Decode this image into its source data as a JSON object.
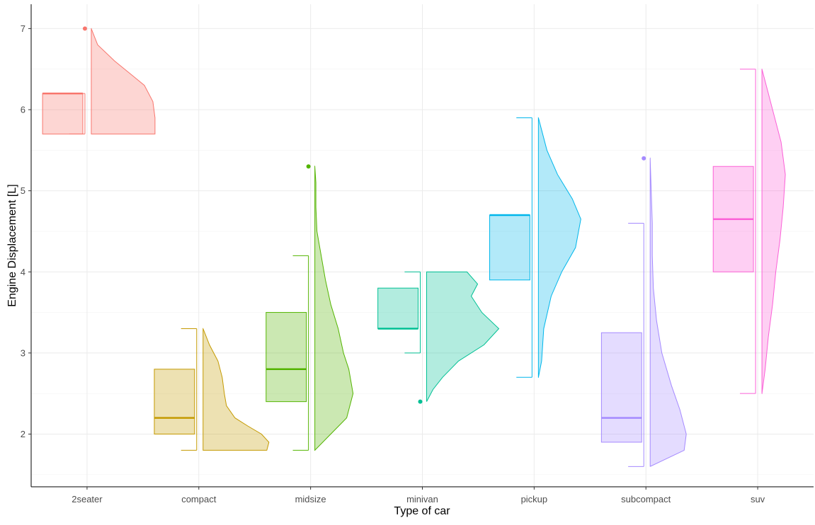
{
  "chart_data": {
    "type": "raincloud",
    "title": "",
    "xlabel": "Type of car",
    "ylabel": "Engine Displacement [L]",
    "ylim": [
      1.35,
      7.3
    ],
    "yticks": [
      2,
      3,
      4,
      5,
      6,
      7
    ],
    "grid": true,
    "legend": "none",
    "categories": [
      "2seater",
      "compact",
      "midsize",
      "minivan",
      "pickup",
      "subcompact",
      "suv"
    ],
    "colors": [
      "#F8766D",
      "#C49A00",
      "#53B400",
      "#00C094",
      "#00B6EB",
      "#A58AFF",
      "#FB61D7"
    ],
    "boxplots": [
      {
        "category": "2seater",
        "whisker_low": 5.7,
        "q1": 5.7,
        "median": 6.2,
        "q3": 6.2,
        "whisker_high": 6.2,
        "outliers": [
          7.0
        ]
      },
      {
        "category": "compact",
        "whisker_low": 1.8,
        "q1": 2.0,
        "median": 2.2,
        "q3": 2.8,
        "whisker_high": 3.3,
        "outliers": []
      },
      {
        "category": "midsize",
        "whisker_low": 1.8,
        "q1": 2.4,
        "median": 2.8,
        "q3": 3.5,
        "whisker_high": 4.2,
        "outliers": [
          5.3
        ]
      },
      {
        "category": "minivan",
        "whisker_low": 3.0,
        "q1": 3.3,
        "median": 3.3,
        "q3": 3.8,
        "whisker_high": 4.0,
        "outliers": [
          2.4
        ]
      },
      {
        "category": "pickup",
        "whisker_low": 2.7,
        "q1": 3.9,
        "median": 4.7,
        "q3": 4.7,
        "whisker_high": 5.9,
        "outliers": []
      },
      {
        "category": "subcompact",
        "whisker_low": 1.6,
        "q1": 1.9,
        "median": 2.2,
        "q3": 3.25,
        "whisker_high": 4.6,
        "outliers": [
          5.4
        ]
      },
      {
        "category": "suv",
        "whisker_low": 2.5,
        "q1": 4.0,
        "median": 4.65,
        "q3": 5.3,
        "whisker_high": 6.5,
        "outliers": []
      }
    ],
    "densities": [
      {
        "category": "2seater",
        "y": [
          5.7,
          5.9,
          6.1,
          6.3,
          6.45,
          6.6,
          6.8,
          7.0
        ],
        "width": [
          0.6,
          0.6,
          0.58,
          0.5,
          0.36,
          0.22,
          0.06,
          0.0
        ]
      },
      {
        "category": "compact",
        "y": [
          1.8,
          1.9,
          2.0,
          2.1,
          2.2,
          2.35,
          2.5,
          2.7,
          2.9,
          3.1,
          3.3
        ],
        "width": [
          0.6,
          0.62,
          0.55,
          0.42,
          0.3,
          0.22,
          0.2,
          0.18,
          0.14,
          0.06,
          0.0
        ]
      },
      {
        "category": "midsize",
        "y": [
          1.8,
          2.0,
          2.2,
          2.5,
          2.8,
          3.0,
          3.3,
          3.6,
          3.9,
          4.2,
          4.5,
          4.8,
          5.1,
          5.3
        ],
        "width": [
          0.0,
          0.15,
          0.3,
          0.36,
          0.32,
          0.27,
          0.22,
          0.15,
          0.1,
          0.06,
          0.02,
          0.01,
          0.01,
          0.0
        ]
      },
      {
        "category": "minivan",
        "y": [
          2.4,
          2.55,
          2.7,
          2.9,
          3.1,
          3.3,
          3.5,
          3.7,
          3.85,
          4.0
        ],
        "width": [
          0.0,
          0.06,
          0.15,
          0.3,
          0.54,
          0.68,
          0.52,
          0.42,
          0.48,
          0.38
        ]
      },
      {
        "category": "pickup",
        "y": [
          2.7,
          2.9,
          3.3,
          3.7,
          4.0,
          4.3,
          4.65,
          4.9,
          5.2,
          5.5,
          5.9
        ],
        "width": [
          0.0,
          0.03,
          0.05,
          0.12,
          0.22,
          0.35,
          0.4,
          0.32,
          0.18,
          0.08,
          0.0
        ]
      },
      {
        "category": "subcompact",
        "y": [
          1.6,
          1.8,
          2.0,
          2.3,
          2.6,
          3.0,
          3.4,
          3.8,
          4.2,
          4.6,
          5.0,
          5.4
        ],
        "width": [
          0.0,
          0.32,
          0.34,
          0.28,
          0.2,
          0.11,
          0.06,
          0.03,
          0.02,
          0.02,
          0.01,
          0.0
        ]
      },
      {
        "category": "suv",
        "y": [
          2.5,
          2.8,
          3.2,
          3.6,
          4.0,
          4.4,
          4.8,
          5.2,
          5.6,
          6.0,
          6.3,
          6.5
        ],
        "width": [
          0.0,
          0.03,
          0.06,
          0.1,
          0.13,
          0.17,
          0.2,
          0.22,
          0.18,
          0.1,
          0.04,
          0.0
        ]
      }
    ]
  }
}
